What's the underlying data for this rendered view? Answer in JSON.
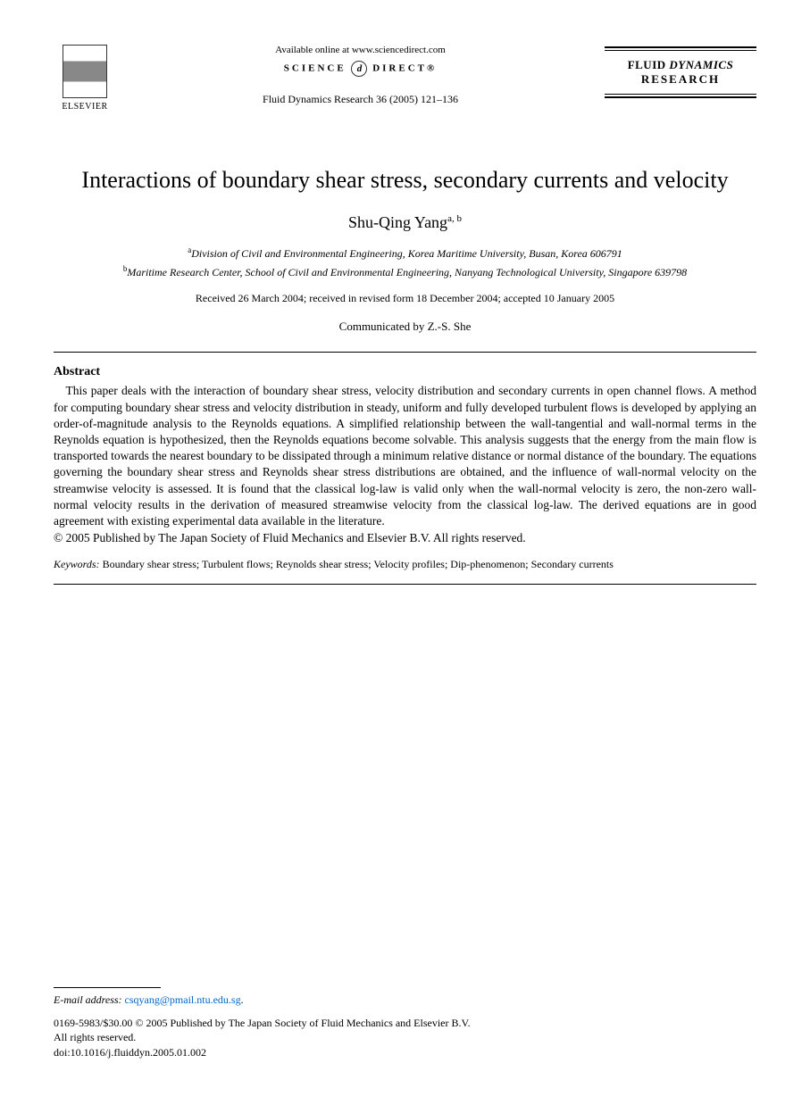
{
  "header": {
    "publisher_label": "ELSEVIER",
    "available_text": "Available online at www.sciencedirect.com",
    "sd_label_left": "SCIENCE",
    "sd_label_right": "DIRECT®",
    "journal_ref": "Fluid Dynamics Research 36 (2005) 121–136",
    "journal_name_line1a": "FLUID",
    "journal_name_line1b": "DYNAMICS",
    "journal_name_line2": "RESEARCH"
  },
  "article": {
    "title": "Interactions of boundary shear stress, secondary currents and velocity",
    "author": "Shu-Qing Yang",
    "author_affil_marks": "a, b",
    "affiliations": [
      {
        "mark": "a",
        "text": "Division of Civil and Environmental Engineering, Korea Maritime University, Busan, Korea 606791"
      },
      {
        "mark": "b",
        "text": "Maritime Research Center, School of Civil and Environmental Engineering, Nanyang Technological University, Singapore 639798"
      }
    ],
    "dates": "Received 26 March 2004; received in revised form 18 December 2004; accepted 10 January 2005",
    "communicated": "Communicated by Z.-S. She"
  },
  "abstract": {
    "heading": "Abstract",
    "body": "This paper deals with the interaction of boundary shear stress, velocity distribution and secondary currents in open channel flows. A method for computing boundary shear stress and velocity distribution in steady, uniform and fully developed turbulent flows is developed by applying an order-of-magnitude analysis to the Reynolds equations. A simplified relationship between the wall-tangential and wall-normal terms in the Reynolds equation is hypothesized, then the Reynolds equations become solvable. This analysis suggests that the energy from the main flow is transported towards the nearest boundary to be dissipated through a minimum relative distance or normal distance of the boundary. The equations governing the boundary shear stress and Reynolds shear stress distributions are obtained, and the influence of wall-normal velocity on the streamwise velocity is assessed. It is found that the classical log-law is valid only when the wall-normal velocity is zero, the non-zero wall-normal velocity results in the derivation of measured streamwise velocity from the classical log-law. The derived equations are in good agreement with existing experimental data available in the literature.",
    "copyright": "© 2005 Published by The Japan Society of Fluid Mechanics and Elsevier B.V. All rights reserved."
  },
  "keywords": {
    "label": "Keywords:",
    "text": "Boundary shear stress; Turbulent flows; Reynolds shear stress; Velocity profiles; Dip-phenomenon; Secondary currents"
  },
  "footer": {
    "email_label": "E-mail address:",
    "email": "csqyang@pmail.ntu.edu.sg",
    "issn_line": "0169-5983/$30.00 © 2005 Published by The Japan Society of Fluid Mechanics and Elsevier B.V.",
    "rights": "All rights reserved.",
    "doi": "doi:10.1016/j.fluiddyn.2005.01.002"
  }
}
